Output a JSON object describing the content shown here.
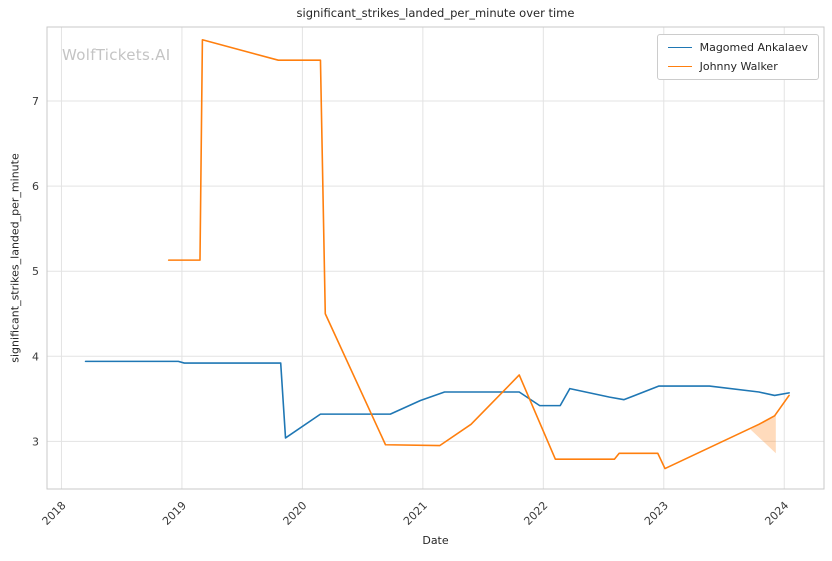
{
  "watermark": "WolfTickets.AI",
  "chart_data": {
    "type": "line",
    "title": "significant_strikes_landed_per_minute over time",
    "xlabel": "Date",
    "ylabel": "significant_strikes_landed_per_minute",
    "x_ticks": [
      2018,
      2019,
      2020,
      2021,
      2022,
      2023,
      2024
    ],
    "y_ticks": [
      3,
      4,
      5,
      6,
      7
    ],
    "xlim": [
      2017.88,
      2024.33
    ],
    "ylim": [
      2.44,
      7.87
    ],
    "grid": true,
    "grid_color": "#e3e3e3",
    "spine_color": "#c9c9c9",
    "legend_position": "upper right",
    "series": [
      {
        "name": "Magomed Ankalaev",
        "color": "#1f77b4",
        "points": [
          [
            2018.2,
            3.94
          ],
          [
            2018.97,
            3.94
          ],
          [
            2019.02,
            3.92
          ],
          [
            2019.82,
            3.92
          ],
          [
            2019.86,
            3.04
          ],
          [
            2020.15,
            3.32
          ],
          [
            2020.73,
            3.32
          ],
          [
            2020.98,
            3.48
          ],
          [
            2021.18,
            3.58
          ],
          [
            2021.8,
            3.58
          ],
          [
            2021.97,
            3.42
          ],
          [
            2022.14,
            3.42
          ],
          [
            2022.22,
            3.62
          ],
          [
            2022.55,
            3.52
          ],
          [
            2022.67,
            3.49
          ],
          [
            2022.96,
            3.65
          ],
          [
            2023.38,
            3.65
          ],
          [
            2023.79,
            3.58
          ],
          [
            2023.92,
            3.54
          ],
          [
            2024.04,
            3.57
          ]
        ]
      },
      {
        "name": "Johnny Walker",
        "color": "#ff7f0e",
        "points": [
          [
            2018.89,
            5.13
          ],
          [
            2019.15,
            5.13
          ],
          [
            2019.17,
            7.72
          ],
          [
            2019.8,
            7.48
          ],
          [
            2020.15,
            7.48
          ],
          [
            2020.19,
            4.5
          ],
          [
            2020.69,
            2.96
          ],
          [
            2021.14,
            2.95
          ],
          [
            2021.4,
            3.2
          ],
          [
            2021.8,
            3.78
          ],
          [
            2022.1,
            2.79
          ],
          [
            2022.59,
            2.79
          ],
          [
            2022.63,
            2.86
          ],
          [
            2022.95,
            2.86
          ],
          [
            2023.01,
            2.68
          ],
          [
            2023.79,
            3.2
          ],
          [
            2023.92,
            3.3
          ],
          [
            2024.04,
            3.54
          ]
        ]
      }
    ],
    "shaded_region": {
      "series": "Johnny Walker",
      "color": "#ff7f0e",
      "opacity": 0.28,
      "points": [
        [
          2023.72,
          3.14
        ],
        [
          2023.93,
          3.31
        ],
        [
          2023.93,
          2.86
        ]
      ]
    }
  }
}
